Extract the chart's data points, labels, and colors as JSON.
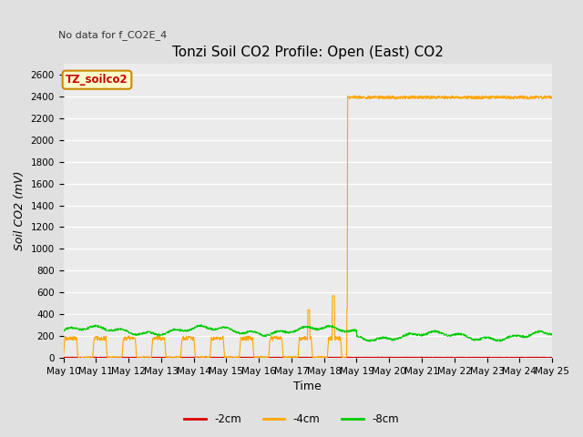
{
  "title": "Tonzi Soil CO2 Profile: Open (East) CO2",
  "no_data_text": "No data for f_CO2E_4",
  "legend_box_text": "TZ_soilco2",
  "ylabel": "Soil CO2 (mV)",
  "xlabel": "Time",
  "ylim": [
    0,
    2700
  ],
  "background_color": "#e0e0e0",
  "plot_bg_color": "#ebebeb",
  "line_2cm_color": "#dd0000",
  "line_4cm_color": "#ffa500",
  "line_8cm_color": "#00cc00",
  "legend_entries": [
    "-2cm",
    "-4cm",
    "-8cm"
  ],
  "title_fontsize": 11,
  "axis_label_fontsize": 9,
  "tick_fontsize": 7.5,
  "x_tick_labels": [
    "May 10",
    "May 11",
    "May 12",
    "May 13",
    "May 14",
    "May 15",
    "May 16",
    "May 17",
    "May 18",
    "May 19",
    "May 20",
    "May 21",
    "May 22",
    "May 23",
    "May 24",
    "May 25"
  ]
}
